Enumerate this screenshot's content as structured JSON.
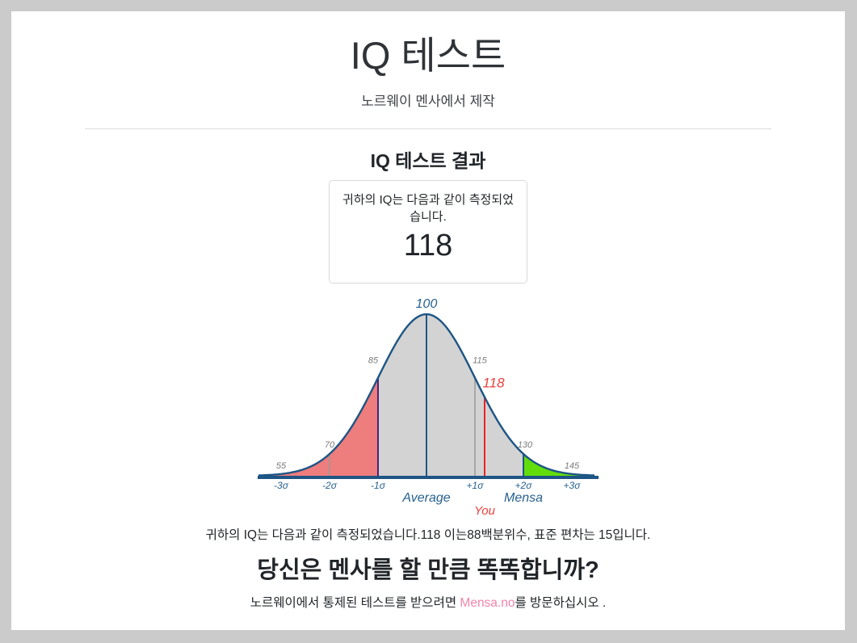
{
  "page": {
    "title": "IQ 테스트",
    "subtitle": "노르웨이 멘사에서 제작"
  },
  "results": {
    "heading": "IQ 테스트 결과",
    "card_text": "귀하의 IQ는 다음과 같이 측정되었습니다.",
    "score": "118"
  },
  "summary": {
    "text": "귀하의 IQ는 다음과 같이 측정되었습니다.118 이는88백분위수, 표준 편차는 15입니다."
  },
  "footer": {
    "heading": "당신은 멘사를 할 만큼 똑똑합니까?",
    "cta_prefix": "노르웨이에서 통제된 테스트를 받으려면 ",
    "cta_link": "Mensa.no",
    "cta_suffix": "를 방문하십시오 .",
    "link_color": "#f285a8"
  },
  "chart_data": {
    "type": "area",
    "title": "IQ normal distribution bell curve",
    "mean": 100,
    "sd": 15,
    "user_score": 118,
    "mensa_cutoff": 130,
    "x_ticks": [
      {
        "iq": 55,
        "sigma": "-3σ"
      },
      {
        "iq": 70,
        "sigma": "-2σ"
      },
      {
        "iq": 85,
        "sigma": "-1σ"
      },
      {
        "iq": 100,
        "sigma": ""
      },
      {
        "iq": 115,
        "sigma": "+1σ"
      },
      {
        "iq": 130,
        "sigma": "+2σ"
      },
      {
        "iq": 145,
        "sigma": "+3σ"
      }
    ],
    "regions": [
      {
        "from_iq": 49,
        "to_iq": 85,
        "fill": "#ee7d7d"
      },
      {
        "from_iq": 85,
        "to_iq": 130,
        "fill": "#d3d3d3"
      },
      {
        "from_iq": 130,
        "to_iq": 151,
        "fill": "#62dd0c"
      }
    ],
    "markers": [
      {
        "iq": 70,
        "color": "#999999",
        "width": 1.5
      },
      {
        "iq": 85,
        "color": "#4a2178",
        "width": 2
      },
      {
        "iq": 100,
        "color": "#1d5585",
        "width": 2
      },
      {
        "iq": 115,
        "color": "#999999",
        "width": 1.5
      },
      {
        "iq": 118,
        "color": "#ee2222",
        "width": 2
      },
      {
        "iq": 130,
        "color": "#1d5585",
        "width": 2
      }
    ],
    "annotations": {
      "average_label": "Average",
      "mensa_label": "Mensa",
      "you_label": "You"
    },
    "colors": {
      "curve": "#1d5585",
      "tick_label": "#27618e",
      "value_label": "#7b7b7b",
      "user": "#e8413d"
    },
    "legend": "none",
    "grid": false
  }
}
